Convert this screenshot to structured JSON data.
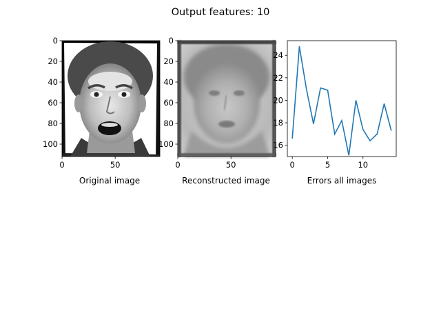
{
  "figure": {
    "suptitle": "Output features: 10"
  },
  "panels": [
    {
      "type": "image",
      "xlabel": "Original image",
      "x_ticks": [
        0,
        50
      ],
      "y_ticks": [
        0,
        20,
        40,
        60,
        80,
        100
      ],
      "xlim": [
        0,
        92
      ],
      "ylim": [
        0,
        112
      ],
      "image_content": "face-photo-grayscale-surprised"
    },
    {
      "type": "image",
      "xlabel": "Reconstructed image",
      "x_ticks": [
        0,
        50
      ],
      "y_ticks": [
        0,
        20,
        40,
        60,
        80,
        100
      ],
      "xlim": [
        0,
        92
      ],
      "ylim": [
        0,
        112
      ],
      "image_content": "face-reconstruction-blurry"
    }
  ],
  "chart_data": {
    "type": "line",
    "xlabel": "Errors all images",
    "ylabel": "",
    "x": [
      0,
      1,
      2,
      3,
      4,
      5,
      6,
      7,
      8,
      9,
      10,
      11,
      12,
      13,
      14
    ],
    "series": [
      {
        "values": [
          16.6,
          24.8,
          21.0,
          17.9,
          21.1,
          20.9,
          17.0,
          18.2,
          15.1,
          20.0,
          17.4,
          16.4,
          17.0,
          19.7,
          17.3
        ]
      }
    ],
    "xlim": [
      -0.7,
      14.7
    ],
    "ylim": [
      15.0,
      25.3
    ],
    "x_ticks": [
      0,
      5,
      10
    ],
    "y_ticks": [
      16,
      18,
      20,
      22,
      24
    ],
    "line_color": "#1f77b4",
    "grid": false
  }
}
